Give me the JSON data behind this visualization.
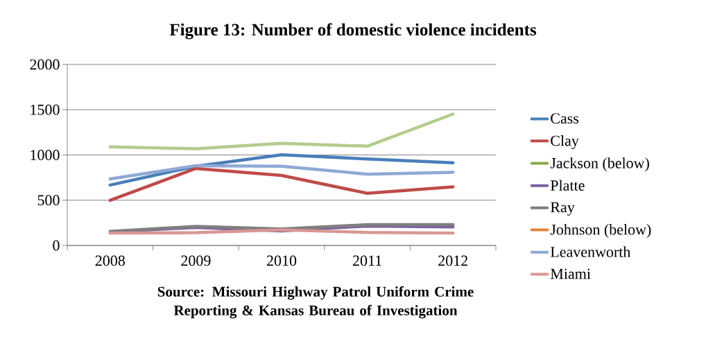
{
  "chart_data": {
    "type": "line",
    "title": "Figure 13: Number of domestic violence incidents",
    "annotations": [
      "Source: Missouri Highway Patrol Uniform Crime Reporting & Kansas Bureau of Investigation"
    ],
    "categories": [
      "2008",
      "2009",
      "2010",
      "2011",
      "2012"
    ],
    "ylim": [
      0,
      2000
    ],
    "yticks": [
      0,
      500,
      1000,
      1500,
      2000
    ],
    "grid": "y",
    "legend": "right",
    "marker": "none",
    "line_style": "solid",
    "series": [
      {
        "name": "Cass",
        "color": "#4a7ebb",
        "values": [
          668,
          875,
          1002,
          956,
          914
        ]
      },
      {
        "name": "Clay",
        "color": "#be4b48",
        "values": [
          499,
          851,
          774,
          577,
          647
        ]
      },
      {
        "name": "Jackson (below)",
        "color": "#8aac4a",
        "values": [
          null,
          null,
          null,
          null,
          null
        ]
      },
      {
        "name": "Platte",
        "color": "#7d60a0",
        "values": [
          150,
          200,
          160,
          215,
          205
        ]
      },
      {
        "name": "Ray",
        "color": "#7f7f7f",
        "values": [
          155,
          211,
          183,
          229,
          229
        ]
      },
      {
        "name": "Johnson (below)",
        "color": "#e6843a",
        "values": [
          null,
          null,
          null,
          null,
          null
        ]
      },
      {
        "name": "Leavenworth",
        "color": "#8ea9d4",
        "values": [
          735,
          882,
          875,
          788,
          809
        ]
      },
      {
        "name": "Miami",
        "color": "#d99694",
        "values": [
          137,
          141,
          172,
          144,
          137
        ]
      },
      {
        "color": "#b3cc8c",
        "values": [
          1090,
          1069,
          1129,
          1097,
          1452
        ]
      }
    ]
  }
}
